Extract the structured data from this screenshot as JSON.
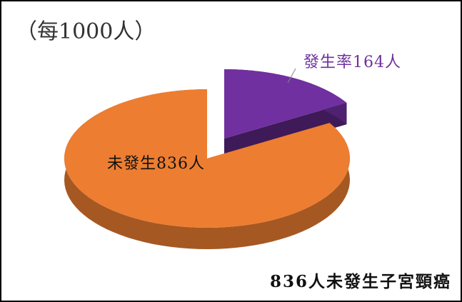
{
  "chart_data": {
    "type": "pie",
    "title": "（每1000人）",
    "categories": [
      "發生率",
      "未發生"
    ],
    "values": [
      164,
      836
    ],
    "value_labels": [
      "發生率164人",
      "未發生836人"
    ],
    "colors": [
      "#7030a0",
      "#ed7d31"
    ],
    "footnote": "836人未發生子宮頸癌"
  }
}
